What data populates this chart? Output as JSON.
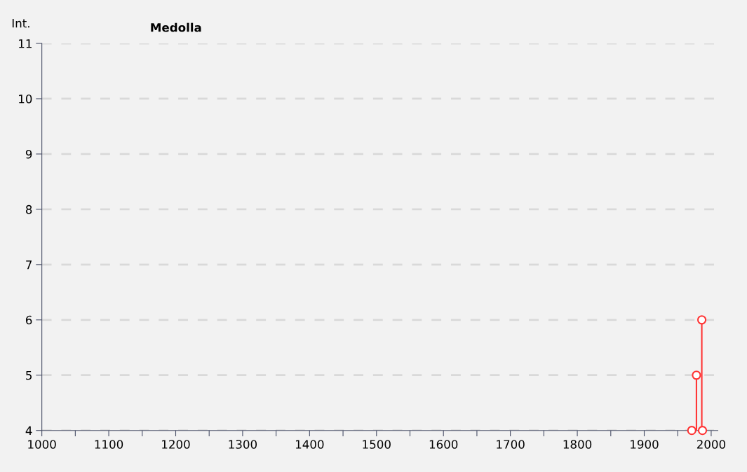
{
  "chart_data": {
    "type": "lollipop",
    "title": "Medolla",
    "ylabel": "Int.",
    "x": [
      1971,
      1978,
      1986,
      1987
    ],
    "series": [
      {
        "color": "#ff3333",
        "values": [
          4,
          5,
          6,
          4
        ]
      }
    ],
    "xlim": [
      1000,
      2010
    ],
    "xticks": [
      1000,
      {
        "value": 1050,
        "label": null
      },
      1100,
      {
        "value": 1150,
        "label": null
      },
      1200,
      {
        "value": 1250,
        "label": null
      },
      1300,
      {
        "value": 1350,
        "label": null
      },
      1400,
      {
        "value": 1450,
        "label": null
      },
      1500,
      {
        "value": 1550,
        "label": null
      },
      1600,
      {
        "value": 1650,
        "label": null
      },
      1700,
      {
        "value": 1750,
        "label": null
      },
      1800,
      {
        "value": 1850,
        "label": null
      },
      1900,
      {
        "value": 1950,
        "label": null
      },
      2000
    ],
    "ylim": [
      4,
      11
    ],
    "yticks": [
      4,
      5,
      6,
      7,
      8,
      9,
      10,
      11
    ],
    "grid": "y",
    "marker": "circle",
    "line_style": "solid"
  }
}
